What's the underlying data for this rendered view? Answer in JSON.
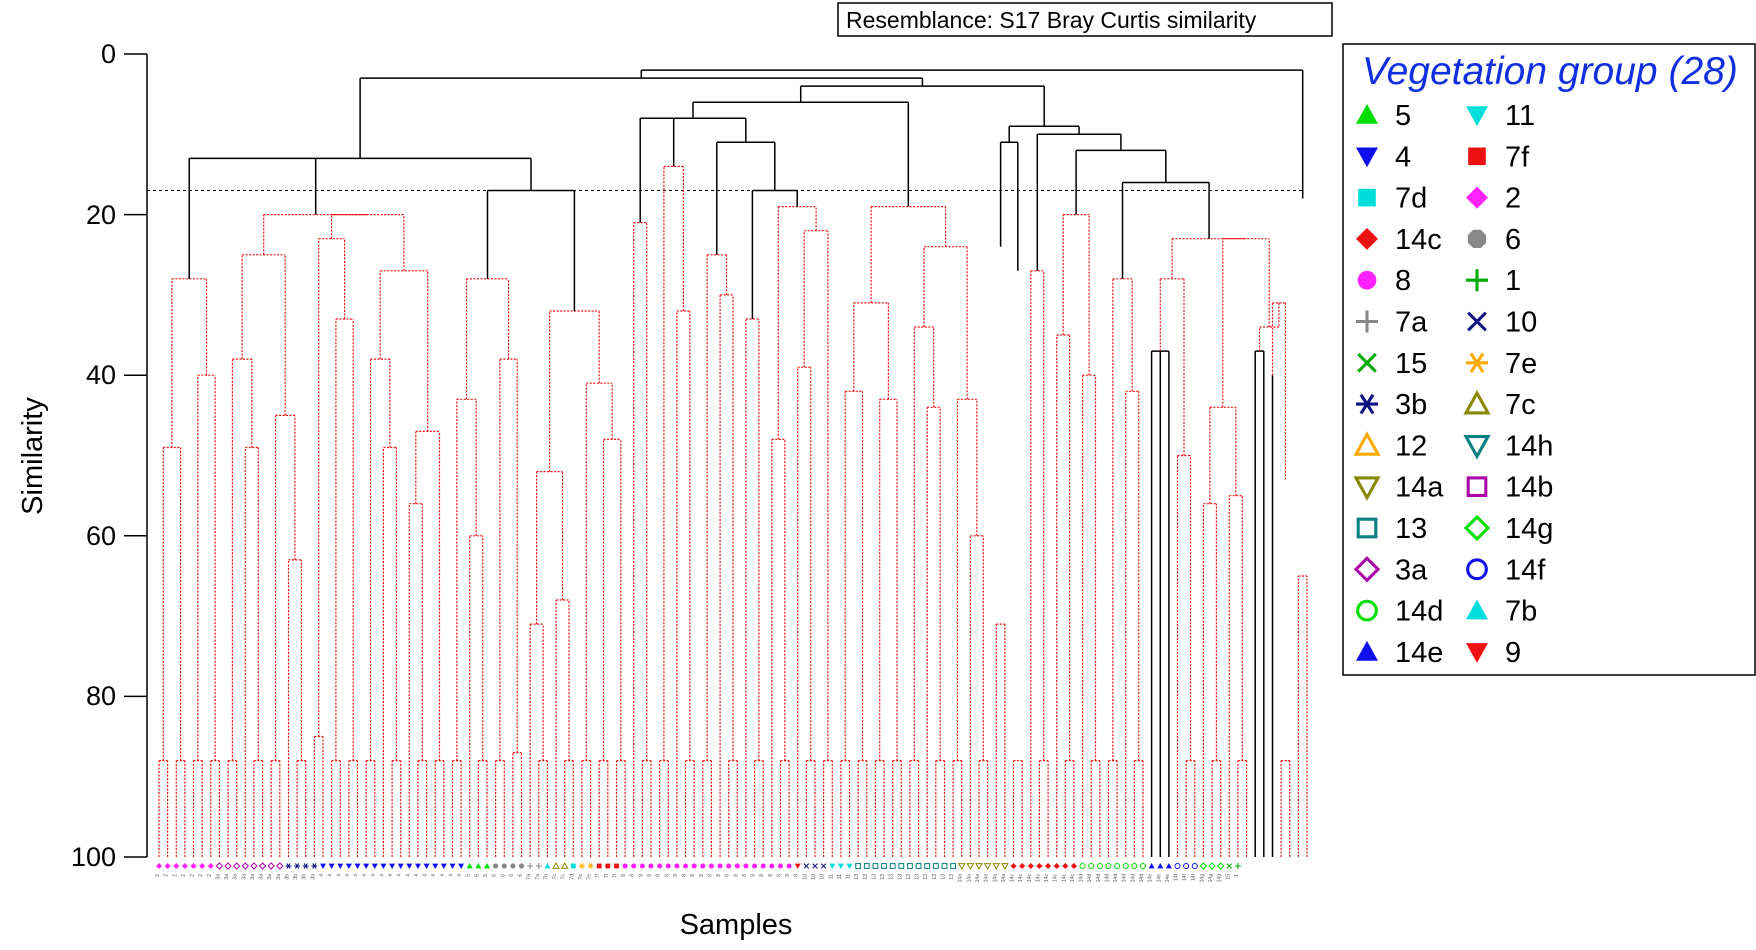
{
  "chart_data": {
    "type": "dendrogram",
    "resemblance_label": "Resemblance: S17 Bray Curtis similarity",
    "ylabel": "Similarity",
    "xlabel": "Samples",
    "yticks": [
      "0",
      "20",
      "40",
      "60",
      "80",
      "100"
    ],
    "ylim": [
      0,
      100
    ],
    "cut_level": 17,
    "legend": {
      "title": "Vegetation group (28)",
      "entries": [
        {
          "label": "5",
          "marker": "triangle-up-filled",
          "color": "#00dd00"
        },
        {
          "label": "11",
          "marker": "triangle-down-filled",
          "color": "#00dddd"
        },
        {
          "label": "4",
          "marker": "triangle-down-filled",
          "color": "#1010ee"
        },
        {
          "label": "7f",
          "marker": "square-filled",
          "color": "#ee1111"
        },
        {
          "label": "7d",
          "marker": "square-filled",
          "color": "#00dddd"
        },
        {
          "label": "2",
          "marker": "diamond-filled",
          "color": "#ff22ff"
        },
        {
          "label": "14c",
          "marker": "diamond-filled",
          "color": "#ee1111"
        },
        {
          "label": "6",
          "marker": "octagon-filled",
          "color": "#888888"
        },
        {
          "label": "8",
          "marker": "circle-filled",
          "color": "#ff22ff"
        },
        {
          "label": "1",
          "marker": "plus",
          "color": "#00aa00"
        },
        {
          "label": "7a",
          "marker": "plus",
          "color": "#888888"
        },
        {
          "label": "10",
          "marker": "cross",
          "color": "#101080"
        },
        {
          "label": "15",
          "marker": "cross",
          "color": "#00aa00"
        },
        {
          "label": "7e",
          "marker": "asterisk",
          "color": "#ffaa00"
        },
        {
          "label": "3b",
          "marker": "asterisk",
          "color": "#101080"
        },
        {
          "label": "7c",
          "marker": "triangle-up-open",
          "color": "#888800"
        },
        {
          "label": "12",
          "marker": "triangle-up-open",
          "color": "#ffaa00"
        },
        {
          "label": "14h",
          "marker": "triangle-down-open",
          "color": "#008080"
        },
        {
          "label": "14a",
          "marker": "triangle-down-open",
          "color": "#888800"
        },
        {
          "label": "14b",
          "marker": "square-open",
          "color": "#aa00aa"
        },
        {
          "label": "13",
          "marker": "square-open",
          "color": "#008080"
        },
        {
          "label": "14g",
          "marker": "diamond-open",
          "color": "#00dd00"
        },
        {
          "label": "3a",
          "marker": "diamond-open",
          "color": "#aa00aa"
        },
        {
          "label": "14f",
          "marker": "circle-open",
          "color": "#1010ee"
        },
        {
          "label": "14d",
          "marker": "circle-open",
          "color": "#00dd00"
        },
        {
          "label": "7b",
          "marker": "triangle-up-filled",
          "color": "#00dddd"
        },
        {
          "label": "14e",
          "marker": "triangle-up-filled",
          "color": "#1010ee"
        },
        {
          "label": "9",
          "marker": "triangle-down-filled",
          "color": "#ee1111"
        }
      ]
    },
    "groups": [
      {
        "label": "2",
        "count": 7
      },
      {
        "label": "3a",
        "count": 8
      },
      {
        "label": "3b",
        "count": 4
      },
      {
        "label": "4",
        "count": 17
      },
      {
        "label": "5",
        "count": 3
      },
      {
        "label": "6",
        "count": 4
      },
      {
        "label": "7a",
        "count": 2
      },
      {
        "label": "7b",
        "count": 1
      },
      {
        "label": "7c",
        "count": 2
      },
      {
        "label": "7d",
        "count": 1
      },
      {
        "label": "7e",
        "count": 2
      },
      {
        "label": "7f",
        "count": 3
      },
      {
        "label": "8",
        "count": 20
      },
      {
        "label": "9",
        "count": 1
      },
      {
        "label": "10",
        "count": 3
      },
      {
        "label": "11",
        "count": 3
      },
      {
        "label": "13",
        "count": 12
      },
      {
        "label": "14a",
        "count": 6
      },
      {
        "label": "14c",
        "count": 8
      },
      {
        "label": "14d",
        "count": 8
      },
      {
        "label": "14e",
        "count": 3
      },
      {
        "label": "14f",
        "count": 3
      },
      {
        "label": "14g",
        "count": 3
      },
      {
        "label": "15",
        "count": 1
      },
      {
        "label": "1",
        "count": 1
      }
    ],
    "tree": {
      "h": 2,
      "c": [
        {
          "h": 3,
          "c": [
            {
              "h": 13,
              "c": [
                {
                  "h": 28,
                  "g": 1,
                  "n": 8
                },
                {
                  "h": 20,
                  "c": [
                    {
                      "h": 25,
                      "g": 1,
                      "n": 10
                    },
                    {
                      "h": 20,
                      "c": [
                        {
                          "h": 23,
                          "g": 1,
                          "n": 6
                        },
                        {
                          "h": 27,
                          "g": 1,
                          "n": 10
                        }
                      ]
                    }
                  ]
                },
                {
                  "h": 17,
                  "c": [
                    {
                      "h": 28,
                      "g": 1,
                      "n": 9
                    },
                    {
                      "h": 32,
                      "g": 1,
                      "n": 12
                    }
                  ]
                }
              ]
            },
            {
              "h": 4,
              "c": [
                {
                  "h": 6,
                  "c": [
                    {
                      "h": 8,
                      "c": [
                        {
                          "h": 21,
                          "g": 1,
                          "n": 3
                        },
                        {
                          "h": 14,
                          "g": 1,
                          "n": 5
                        },
                        {
                          "h": 11,
                          "c": [
                            {
                              "h": 25,
                              "g": 1,
                              "n": 5
                            },
                            {
                              "h": 17,
                              "c": [
                                {
                                  "h": 33,
                                  "g": 1,
                                  "n": 3
                                },
                                {
                                  "h": 19,
                                  "c": [
                                    {
                                      "h": 48,
                                      "g": 1,
                                      "n": 3
                                    },
                                    {
                                      "h": 22,
                                      "g": 1,
                                      "n": 5
                                    }
                                  ]
                                }
                              ]
                            }
                          ]
                        }
                      ]
                    },
                    {
                      "h": 19,
                      "g": 1,
                      "n": 18
                    }
                  ]
                },
                {
                  "h": 9,
                  "c": [
                    {
                      "h": 11,
                      "c": [
                        {
                          "h": 24,
                          "g": 1,
                          "n": 2
                        },
                        {
                          "h": 27,
                          "g": 1,
                          "n": 2
                        }
                      ]
                    },
                    {
                      "h": 10,
                      "c": [
                        {
                          "h": 27,
                          "g": 1,
                          "n": 3
                        },
                        {
                          "h": 12,
                          "c": [
                            {
                              "h": 20,
                              "g": 1,
                              "n": 6
                            },
                            {
                              "h": 16,
                              "c": [
                                {
                                  "h": 28,
                                  "g": 1,
                                  "n": 5
                                },
                                {
                                  "h": 23,
                                  "c": [
                                    {
                                      "h": 28,
                                      "c": [
                                        {
                                          "h": 37,
                                          "g": 0,
                                          "n": 3
                                        },
                                        {
                                          "h": 50,
                                          "g": 1,
                                          "n": 3
                                        }
                                      ]
                                    },
                                    {
                                      "h": 23,
                                      "c": [
                                        {
                                          "h": 44,
                                          "g": 1,
                                          "n": 6
                                        },
                                        {
                                          "h": 34,
                                          "c": [
                                            {
                                              "h": 37,
                                              "g": 0,
                                              "n": 2
                                            },
                                            {
                                              "h": 31,
                                              "c": [
                                                {
                                                  "h": 40,
                                                  "g": 0,
                                                  "n": 1
                                                },
                                                {
                                                  "h": 53,
                                                  "g": 1,
                                                  "n": 2
                                                }
                                              ]
                                            }
                                          ]
                                        }
                                      ]
                                    }
                                  ]
                                }
                              ]
                            }
                          ]
                        }
                      ]
                    }
                  ]
                }
              ]
            }
          ]
        },
        {
          "h": 18,
          "g": 1,
          "n": 2
        }
      ]
    }
  }
}
